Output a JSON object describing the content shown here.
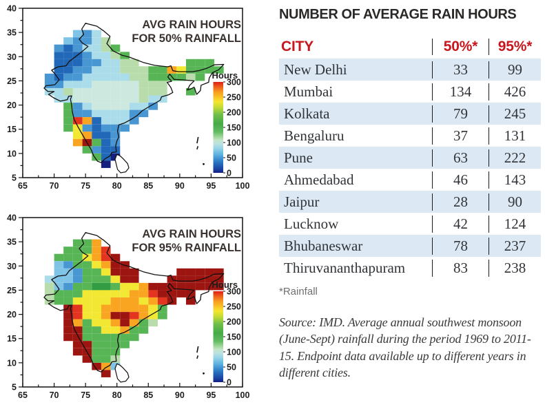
{
  "table": {
    "title": "NUMBER OF AVERAGE RAIN HOURS",
    "columns": [
      "CITY",
      "50%*",
      "95%*"
    ],
    "rows": [
      {
        "city": "New Delhi",
        "p50": "33",
        "p95": "99"
      },
      {
        "city": "Mumbai",
        "p50": "134",
        "p95": "426"
      },
      {
        "city": "Kolkata",
        "p50": "79",
        "p95": "245"
      },
      {
        "city": "Bengaluru",
        "p50": "37",
        "p95": "131"
      },
      {
        "city": "Pune",
        "p50": "63",
        "p95": "222"
      },
      {
        "city": "Ahmedabad",
        "p50": "46",
        "p95": "143"
      },
      {
        "city": "Jaipur",
        "p50": "28",
        "p95": "90"
      },
      {
        "city": "Lucknow",
        "p50": "42",
        "p95": "124"
      },
      {
        "city": "Bhubaneswar",
        "p50": "78",
        "p95": "237"
      },
      {
        "city": "Thiruvananthapuram",
        "p50": "83",
        "p95": "238"
      }
    ],
    "footnote": "*Rainfall",
    "source": "Source: IMD. Average annual southwest monsoon (June-Sept) rainfall during the period 1969 to 2011-15. Endpoint data available up to different years in different cities.",
    "accent_color": "#c9161c",
    "stripe_color": "#dce8f3"
  },
  "map_style": {
    "palette": {
      "N": "#16207f",
      "B": "#2268b8",
      "b": "#4896d2",
      "l": "#7fc3e6",
      "c": "#abdcea",
      "e": "#cde9df",
      "p": "#b8dcab",
      "g": "#57b556",
      "G": "#319c41",
      "y": "#f2e833",
      "o": "#f9a522",
      "O": "#f2721c",
      "r": "#e33420",
      "R": "#9d1510"
    },
    "gradient_stops": [
      [
        0,
        "#dd1f16"
      ],
      [
        5,
        "#ee5a1c"
      ],
      [
        11,
        "#f79c1f"
      ],
      [
        17,
        "#f9c426"
      ],
      [
        22,
        "#f2e630"
      ],
      [
        28,
        "#c3da35"
      ],
      [
        36,
        "#6fbe4a"
      ],
      [
        46,
        "#44ab47"
      ],
      [
        55,
        "#63bb62"
      ],
      [
        60,
        "#9ad593"
      ],
      [
        64,
        "#c4e5c9"
      ],
      [
        68,
        "#bce2df"
      ],
      [
        73,
        "#97d4e8"
      ],
      [
        80,
        "#5cb1e0"
      ],
      [
        88,
        "#2a78c2"
      ],
      [
        95,
        "#1b4aa8"
      ],
      [
        100,
        "#141d86"
      ]
    ]
  },
  "chart_data": [
    {
      "type": "heatmap",
      "title_lines": [
        "AVG RAIN HOURS",
        "FOR 50% RAINFALL"
      ],
      "x_range": [
        65,
        100
      ],
      "y_range": [
        5,
        40
      ],
      "x_ticks": [
        65,
        70,
        75,
        80,
        85,
        90,
        95,
        100
      ],
      "y_ticks": [
        40,
        35,
        30,
        25,
        20,
        15,
        10,
        5
      ],
      "minor_tick_step": 2.5,
      "colorbar": {
        "label": "Hours",
        "ticks": [
          300,
          250,
          200,
          150,
          100,
          50,
          0
        ]
      },
      "grid": {
        "lon0": 68.5,
        "lat_top": 35.5,
        "cell_deg": 1.5,
        "rows": [
          "...lbc.............",
          "..lbbcp............",
          ".bBbccpg...........",
          ".BBBbccpg..........",
          ".BBBbbccpp.....ggg.",
          ".BBbbcccpppggoygggg",
          "bBbbcccccppggggpg..",
          "bbccceeeeeppp......",
          "ccpeeeeeeeppp..g...",
          ".cceeeeeeepcc......",
          "..gbceeeeccb.......",
          "..gbbccccbb........",
          "..groBcccb.........",
          "..gybBbbb..........",
          "...yoBBb...........",
          "...oRgBb...........",
          "....gbBB...........",
          ".....gBN...........",
          "......N............"
        ]
      }
    },
    {
      "type": "heatmap",
      "title_lines": [
        "AVG RAIN HOURS",
        "FOR 95% RAINFALL"
      ],
      "x_range": [
        65,
        100
      ],
      "y_range": [
        5,
        40
      ],
      "x_ticks": [
        65,
        70,
        75,
        80,
        85,
        90,
        95,
        100
      ],
      "y_ticks": [
        40,
        35,
        30,
        25,
        20,
        15,
        10,
        5
      ],
      "minor_tick_step": 2.5,
      "colorbar": {
        "label": "Hours",
        "ticks": [
          300,
          250,
          200,
          150,
          100,
          50,
          0
        ]
      },
      "grid": {
        "lon0": 68.5,
        "lat_top": 35.5,
        "cell_deg": 1.5,
        "rows": [
          "...ggo.............",
          "..gggor............",
          ".gggyorR...........",
          ".lbggyoRR..........",
          ".llbggyRRR....RRRRR",
          "cllbgggyRR...RRRRRR",
          "plbggGGgyyoRRRRRRRR",
          "pgggyyyyyoorRRRR...",
          "pggyyyyoooyorR.R...",
          "..Rryyoooooyg......",
          "..RryyoRRroyg......",
          "..RogyyoRogp.......",
          "..RRggyyogg........",
          "..RRgggggg.........",
          "...RRgggg..........",
          "...RRggg...........",
          "....Rggp...........",
          ".....Rol...........",
          "......R............"
        ]
      }
    }
  ]
}
